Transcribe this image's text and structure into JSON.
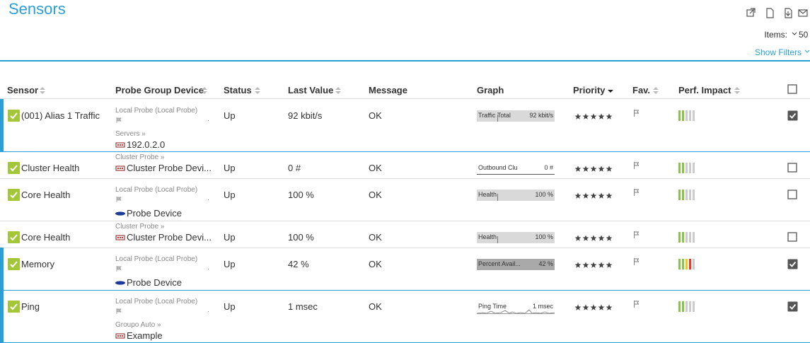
{
  "header": {
    "title": "Sensors",
    "items_label": "Items:",
    "items_value": "50",
    "show_filters": "Show Filters"
  },
  "table": {
    "columns": [
      "Sensor",
      "Probe Group Device",
      "Status",
      "Last Value",
      "Message",
      "Graph",
      "Priority",
      "Fav.",
      "Perf. Impact"
    ],
    "rows": [
      {
        "sensor": "(001) Alias 1 Traffic",
        "probe": "Local Probe (Local Probe)",
        "group": "Servers »",
        "device": "192.0.2.0",
        "device_icon": "server",
        "status": "Up",
        "last_value": "92 kbit/s",
        "message": "OK",
        "graph_label": "Traffic Total",
        "graph_value": "92 kbit/s",
        "graph_style": "bar",
        "impact_colors": [
          "#8bc34a",
          "#8bc34a",
          "#ccc",
          "#ccc",
          "#ccc"
        ],
        "checked": true,
        "selected": true
      },
      {
        "sensor": "Cluster Health",
        "group": "Cluster Probe »",
        "device": "Cluster Probe Devi...",
        "device_icon": "server",
        "status": "Up",
        "last_value": "0 #",
        "message": "OK",
        "graph_label": "Outbound Clu",
        "graph_value": "0 #",
        "graph_style": "line",
        "impact_colors": [
          "#8bc34a",
          "#8bc34a",
          "#ccc",
          "#ccc",
          "#ccc"
        ],
        "checked": false,
        "selected": false
      },
      {
        "sensor": "Core Health",
        "probe": "Local Probe (Local Probe)",
        "device": "Probe Device",
        "device_icon": "logo",
        "status": "Up",
        "last_value": "100 %",
        "message": "OK",
        "graph_label": "Health",
        "graph_value": "100 %",
        "graph_style": "bar",
        "impact_colors": [
          "#8bc34a",
          "#8bc34a",
          "#ccc",
          "#ccc",
          "#ccc"
        ],
        "checked": false,
        "selected": false
      },
      {
        "sensor": "Core Health",
        "group": "Cluster Probe »",
        "device": "Cluster Probe Devi...",
        "device_icon": "server",
        "status": "Up",
        "last_value": "100 %",
        "message": "OK",
        "graph_label": "Health",
        "graph_value": "100 %",
        "graph_style": "bar",
        "impact_colors": [
          "#8bc34a",
          "#8bc34a",
          "#ccc",
          "#ccc",
          "#ccc"
        ],
        "checked": false,
        "selected": false
      },
      {
        "sensor": "Memory",
        "probe": "Local Probe (Local Probe)",
        "device": "Probe Device",
        "device_icon": "logo",
        "status": "Up",
        "last_value": "42 %",
        "message": "OK",
        "graph_label": "Percent Avail...",
        "graph_value": "42 %",
        "graph_style": "dark",
        "impact_colors": [
          "#8bc34a",
          "#8bc34a",
          "#f5c518",
          "#e53935",
          "#ccc"
        ],
        "checked": true,
        "selected": true
      },
      {
        "sensor": "Ping",
        "probe": "Local Probe (Local Probe)",
        "group": "Groupo Auto »",
        "device": "Example",
        "device_icon": "server",
        "status": "Up",
        "last_value": "1 msec",
        "message": "OK",
        "graph_label": "Ping Time",
        "graph_value": "1 msec",
        "graph_style": "spark",
        "impact_colors": [
          "#8bc34a",
          "#8bc34a",
          "#ccc",
          "#ccc",
          "#ccc"
        ],
        "checked": true,
        "selected": true
      }
    ]
  }
}
